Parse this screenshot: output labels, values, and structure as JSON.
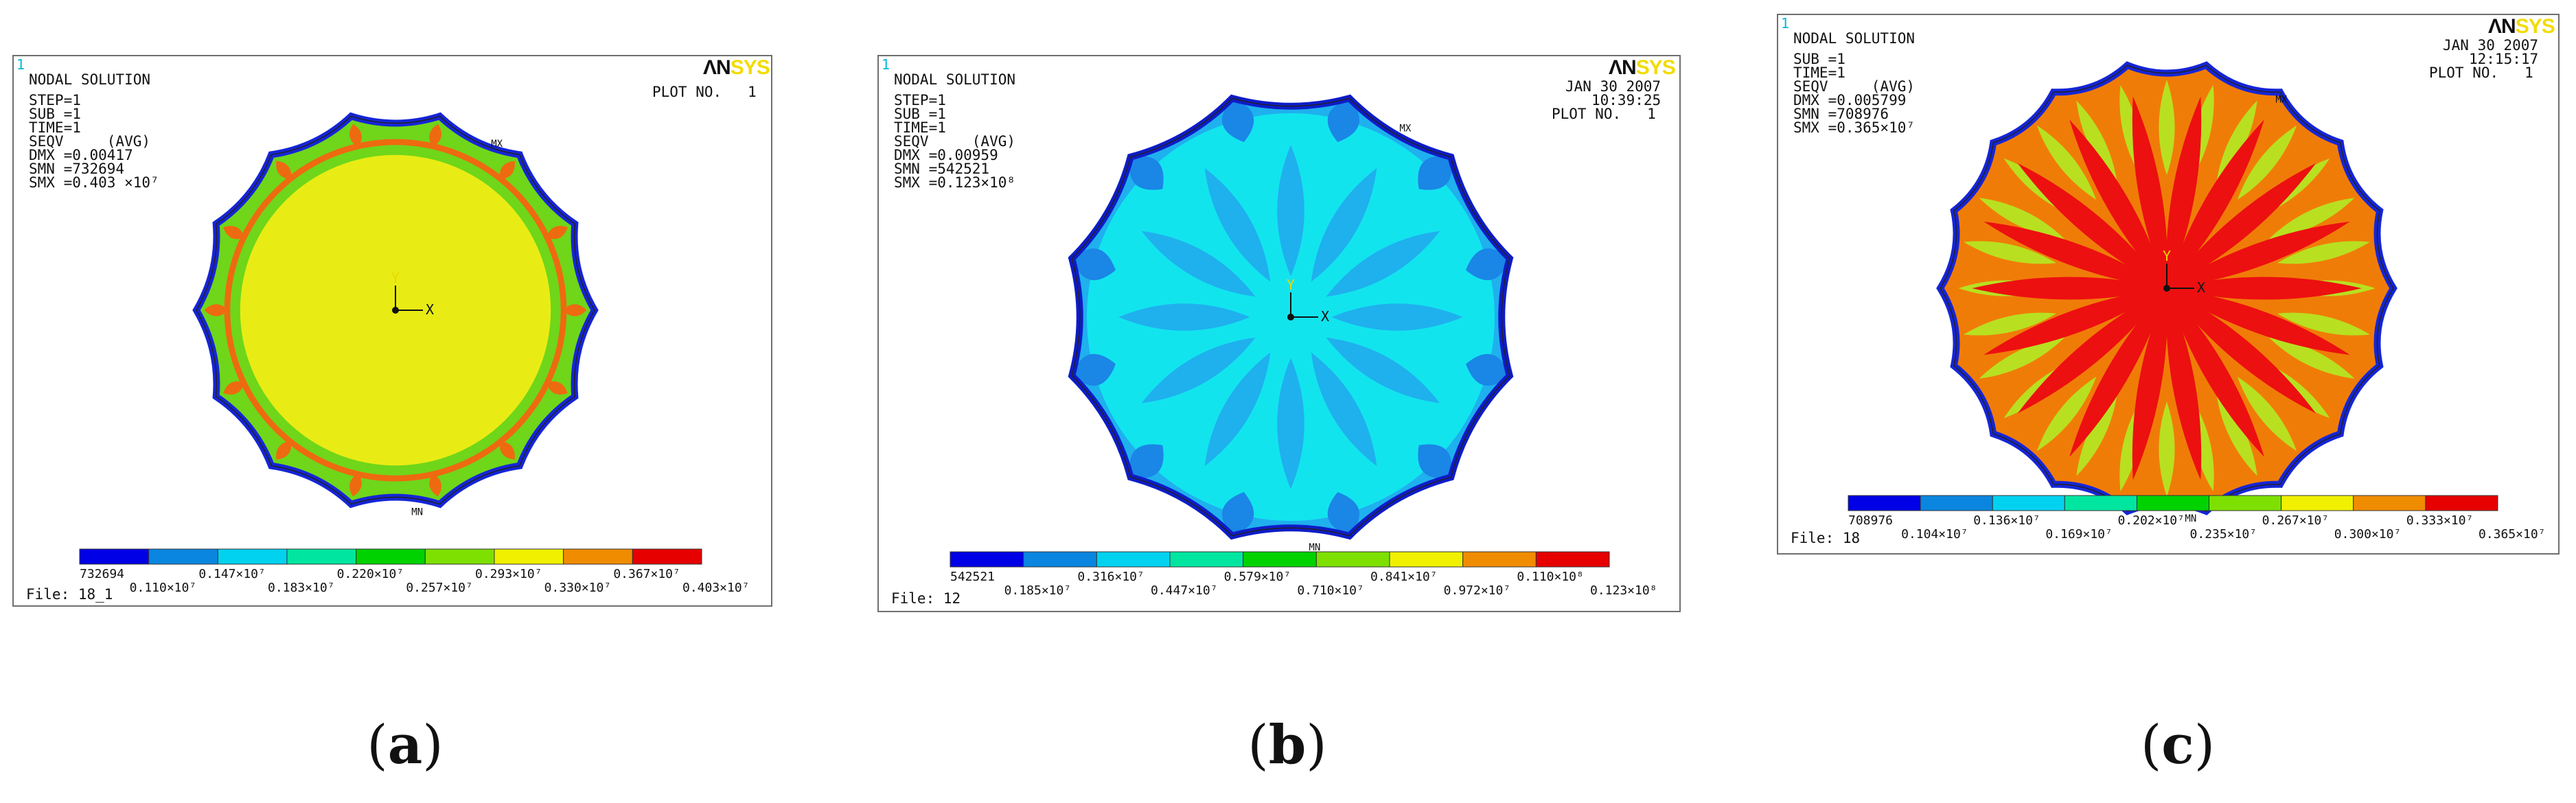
{
  "panels": [
    {
      "id": "a",
      "corner_num": "1",
      "header": [
        "NODAL SOLUTION",
        "",
        "STEP=1",
        "SUB =1",
        "TIME=1",
        "SEQV     (AVG)",
        "DMX =0.00417",
        "SMN =732694",
        "SMX =0.403 ×10⁷"
      ],
      "right_lines": [
        "PLOT NO.   1"
      ],
      "logo": "ANSYS",
      "axis_labels": [
        "Y",
        "X"
      ],
      "mx_label": "MX",
      "mn_label": "MN",
      "colorbar_top": [
        "732694",
        "0.147×10⁷",
        "0.220×10⁷",
        "0.293×10⁷",
        "0.367×10⁷"
      ],
      "colorbar_bottom": [
        "0.110×10⁷",
        "0.183×10⁷",
        "0.257×10⁷",
        "0.330×10⁷",
        "0.403×10⁷"
      ],
      "file": "File: 18_1",
      "caption_letter": "a"
    },
    {
      "id": "b",
      "corner_num": "1",
      "header": [
        "NODAL SOLUTION",
        "",
        "STEP=1",
        "SUB =1",
        "TIME=1",
        "SEQV     (AVG)",
        "DMX =0.00959",
        "SMN =542521",
        "SMX =0.123×10⁸"
      ],
      "right_lines": [
        "JAN 30 2007",
        "10:39:25",
        "PLOT NO.   1"
      ],
      "logo": "ANSYS",
      "axis_labels": [
        "Y",
        "X"
      ],
      "mx_label": "MX",
      "mn_label": "MN",
      "colorbar_top": [
        "542521",
        "0.316×10⁷",
        "0.579×10⁷",
        "0.841×10⁷",
        "0.110×10⁸"
      ],
      "colorbar_bottom": [
        "0.185×10⁷",
        "0.447×10⁷",
        "0.710×10⁷",
        "0.972×10⁷",
        "0.123×10⁸"
      ],
      "file": "File: 12",
      "caption_letter": "b"
    },
    {
      "id": "c",
      "corner_num": "1",
      "header": [
        "NODAL SOLUTION",
        "",
        "SUB =1",
        "TIME=1",
        "SEQV     (AVG)",
        "DMX =0.005799",
        "SMN =708976",
        "SMX =0.365×10⁷"
      ],
      "right_lines": [
        "JAN 30 2007",
        "12:15:17",
        "PLOT NO.   1"
      ],
      "logo": "ANSYS",
      "axis_labels": [
        "Y",
        "X"
      ],
      "mx_label": "MX",
      "mn_label": "MN",
      "colorbar_top": [
        "708976",
        "0.136×10⁷",
        "0.202×10⁷",
        "0.267×10⁷",
        "0.333×10⁷"
      ],
      "colorbar_bottom": [
        "0.104×10⁷",
        "0.169×10⁷",
        "0.235×10⁷",
        "0.300×10⁷",
        "0.365×10⁷"
      ],
      "file": "File: 18",
      "caption_letter": "c"
    }
  ],
  "colorbar_colors": [
    "#0000e6",
    "#0a86e0",
    "#00d2f0",
    "#00e6a0",
    "#00d200",
    "#7ee000",
    "#f0f000",
    "#f08c00",
    "#e60000"
  ],
  "contour_colors": {
    "a": {
      "body": "#e8ec14",
      "ring": "#6fd61a",
      "accent": "#ee6a10",
      "edge": "#1525d8"
    },
    "b": {
      "body": "#12e4ee",
      "ring": "#1fb0ee",
      "accent": "#1a86e6",
      "edge": "#0e1cc8"
    },
    "c": {
      "body": "#ec1010",
      "ring": "#f07c08",
      "accent": "#b8e020",
      "edge": "#1525d8"
    }
  }
}
